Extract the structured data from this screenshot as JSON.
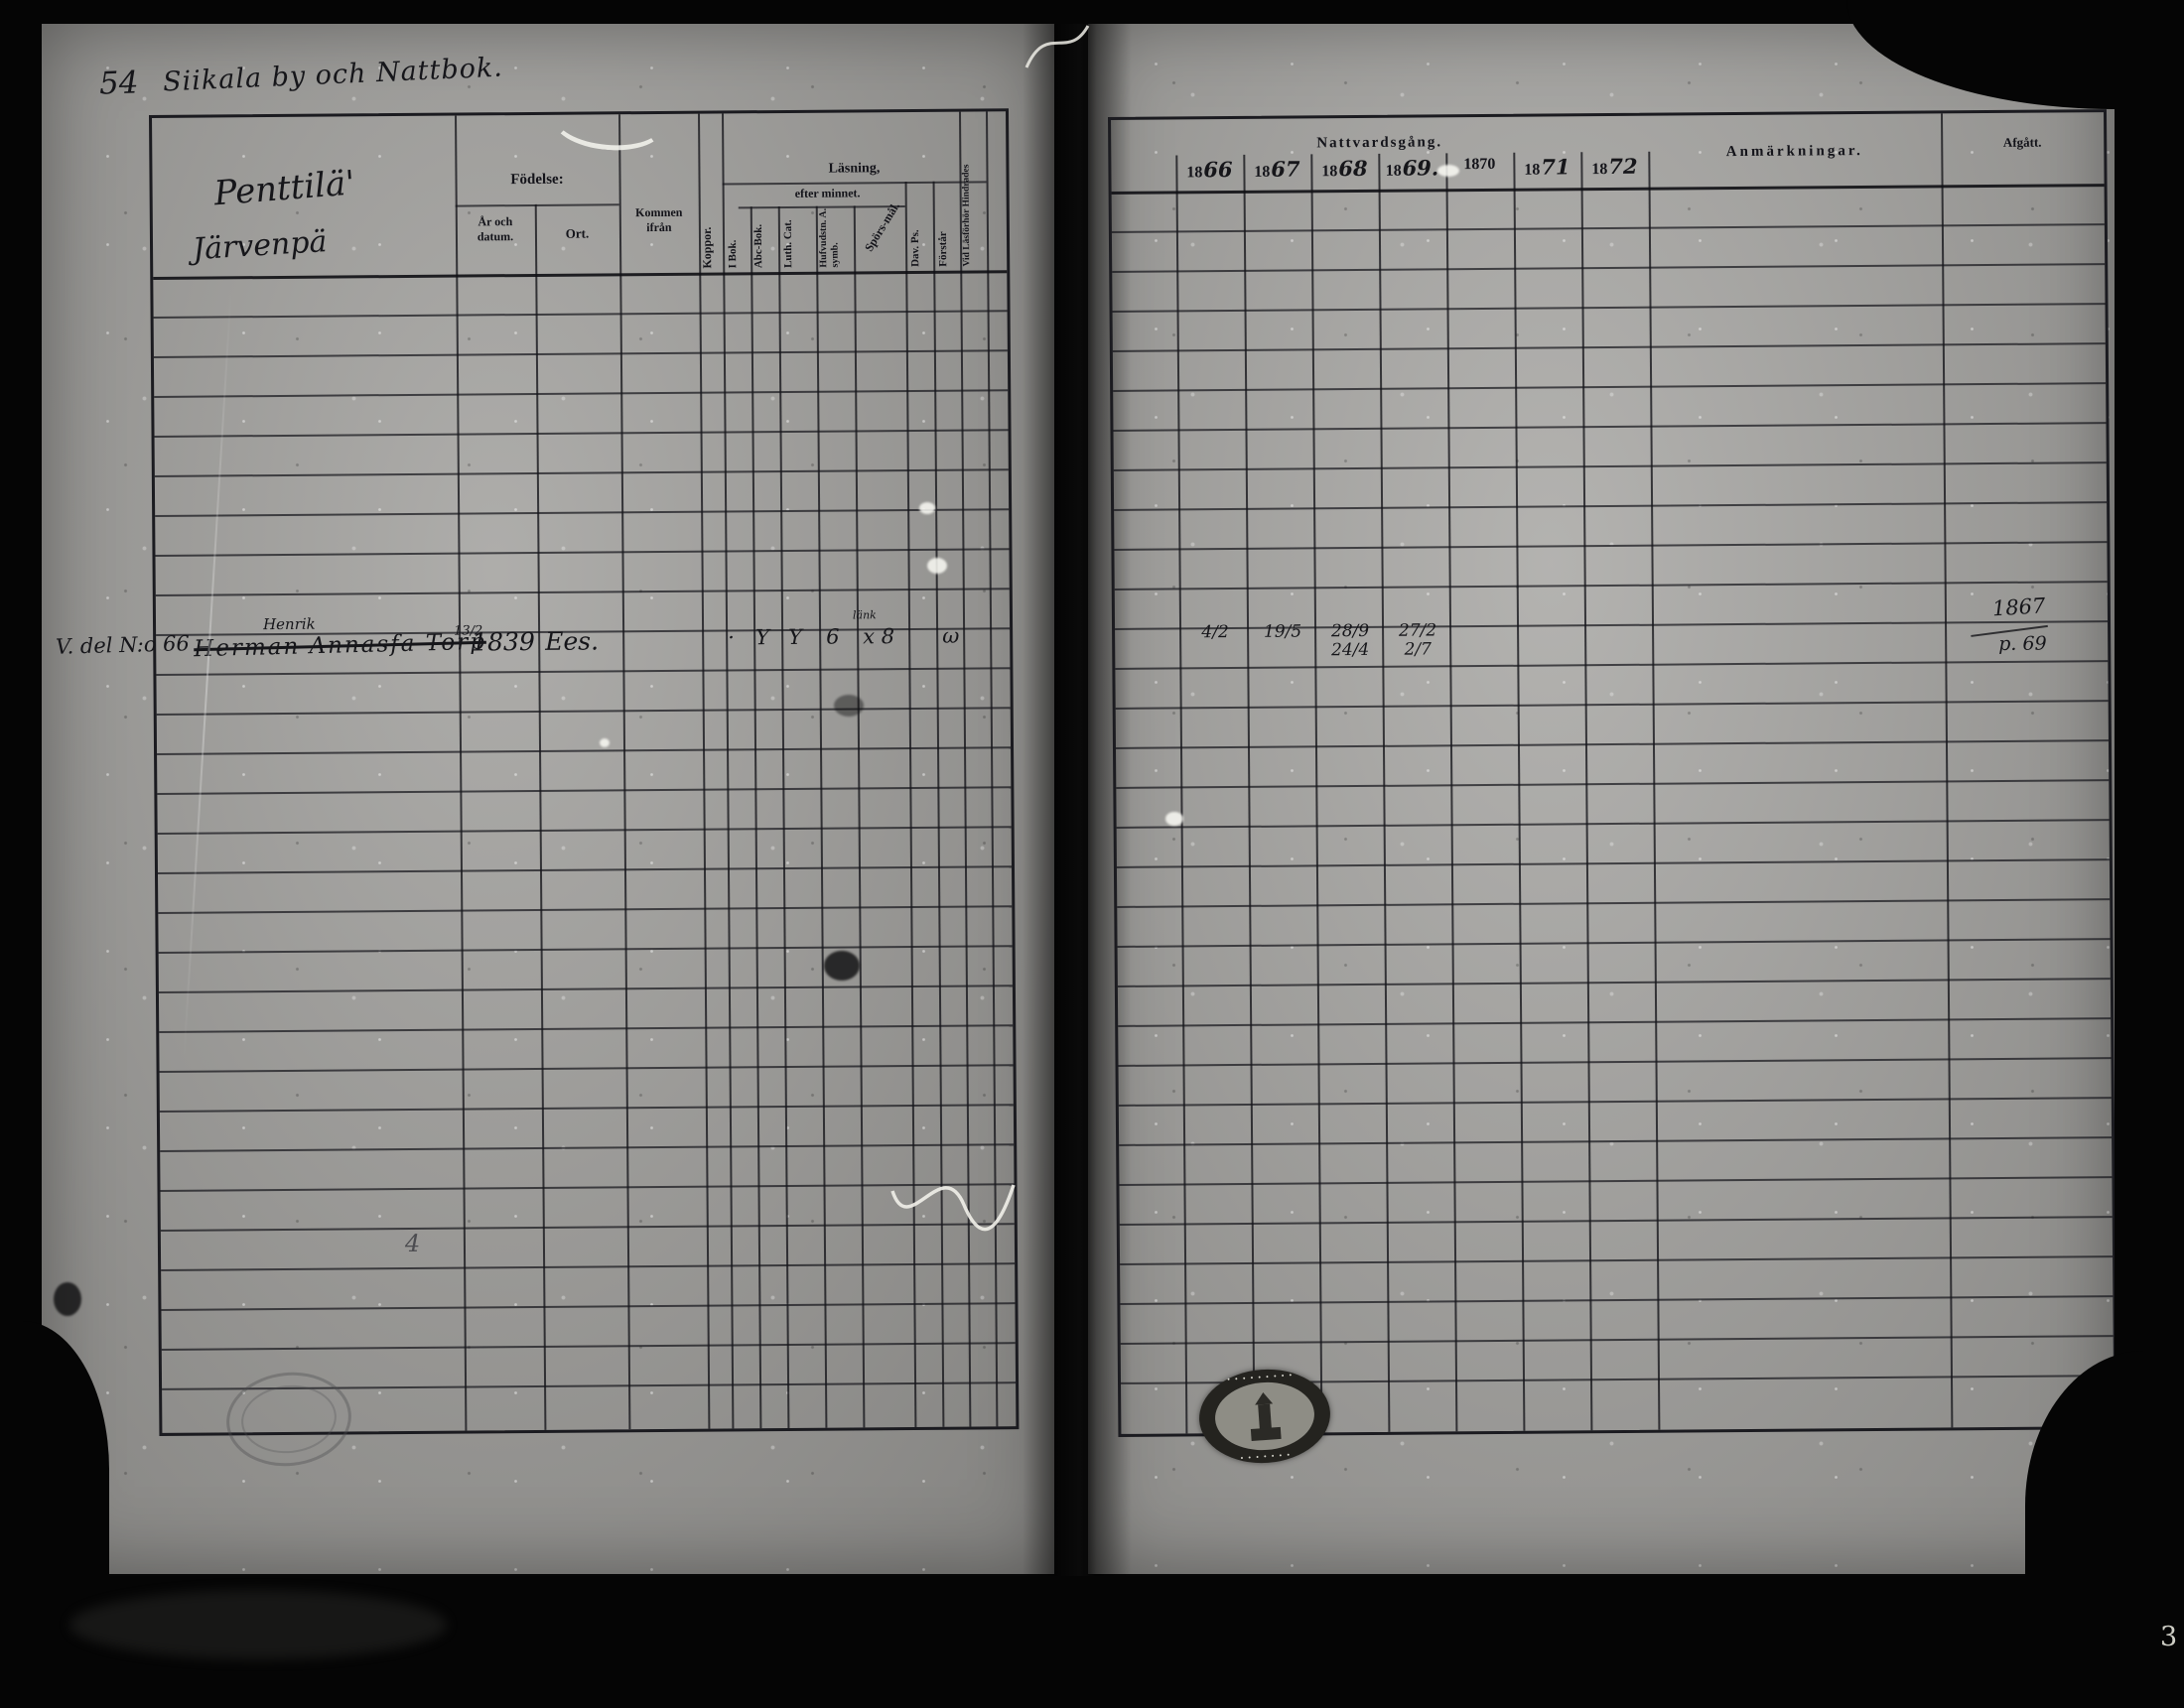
{
  "header": {
    "page_number": "54",
    "title_script": "Siikala by och Nattbok."
  },
  "left_table": {
    "name_header_script1": "Penttilä'",
    "name_header_script2": "Järvenpä",
    "groups": {
      "fodelse": "Födelse:",
      "ar_och_datum": "År och datum.",
      "ort": "Ort.",
      "kommen": "Kommen ifrån",
      "koppor": "Koppor.",
      "lasning_1": "Läsning,",
      "lasning_2": "efter minnet.",
      "i_bok": "I Bok.",
      "abc_bok": "Abc-Bok.",
      "luth_cat": "Luth. Cat.",
      "hufvud": "Hufvudstn. A. symb.",
      "spors": "Spörs-mål.",
      "dav_ps": "Dav. Ps.",
      "forstar": "Förstår",
      "vid_lasforhor": "Vid Läsförhör Hindrades"
    },
    "rows": 29,
    "entry": {
      "margin": "V. del N:o 66",
      "name_note": "Henrik",
      "name_struck": "Herman Annasfa Torp",
      "birth_frac": "13/2",
      "birth_year": "1839",
      "ort": "Ees.",
      "marks": {
        "i_bok": "·",
        "abc_bok": "Y",
        "luth_cat": "Y",
        "hufvud": "6",
        "spors": "x 8",
        "spors_note": "länk",
        "forstar": "ω"
      }
    },
    "pencil_mark": "4"
  },
  "right_table": {
    "communion_header": "Nattvardsgång.",
    "years": [
      {
        "printed": "18",
        "script": "66"
      },
      {
        "printed": "18",
        "script": "67"
      },
      {
        "printed": "18",
        "script": "68"
      },
      {
        "printed": "18",
        "script": "69."
      },
      {
        "printed": "1870",
        "script": ""
      },
      {
        "printed": "18",
        "script": "71"
      },
      {
        "printed": "18",
        "script": "72"
      }
    ],
    "anmarkningar": "Anmärkningar.",
    "afgatt": "Afgått.",
    "rows": 31,
    "entry_marks": [
      "4/2",
      "19/5",
      "28/9 24/4",
      "27/2 2/7",
      "",
      "",
      ""
    ],
    "afgatt_entry_line1": "1867",
    "afgatt_entry_line2": "p. 69"
  },
  "artifacts": {
    "corner_number": "3"
  }
}
